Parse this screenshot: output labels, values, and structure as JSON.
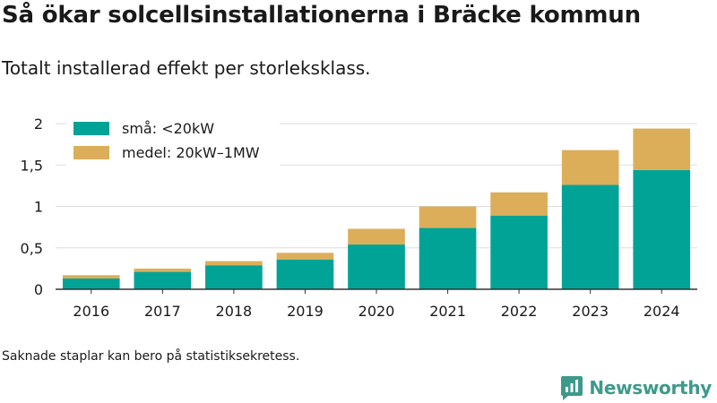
{
  "header": {
    "title": "Så ökar solcellsinstallationerna i Bräcke kommun",
    "subtitle": "Totalt installerad effekt per storleksklass."
  },
  "footer": {
    "note": "Saknade staplar kan bero på statistiksekretess.",
    "brand": "Newsworthy",
    "brand_icon": "bar-chart-speech-bubble-icon"
  },
  "colors": {
    "small": "#00a396",
    "medium": "#dcae5a",
    "grid": "#dddddd",
    "axis": "#333333",
    "brand": "#3d9a8b"
  },
  "chart_data": {
    "type": "bar",
    "stacked": true,
    "categories": [
      "2016",
      "2017",
      "2018",
      "2019",
      "2020",
      "2021",
      "2022",
      "2023",
      "2024"
    ],
    "series": [
      {
        "name": "små: <20kW",
        "values": [
          0.13,
          0.21,
          0.29,
          0.36,
          0.54,
          0.74,
          0.89,
          1.26,
          1.44
        ]
      },
      {
        "name": "medel: 20kW–1MW",
        "values": [
          0.04,
          0.04,
          0.05,
          0.08,
          0.19,
          0.26,
          0.28,
          0.42,
          0.5
        ]
      }
    ],
    "y_ticks": [
      "0",
      "0,5",
      "1",
      "1,5",
      "2"
    ],
    "ylim": [
      0,
      2
    ],
    "grid": true,
    "legend_position": "top-left"
  }
}
